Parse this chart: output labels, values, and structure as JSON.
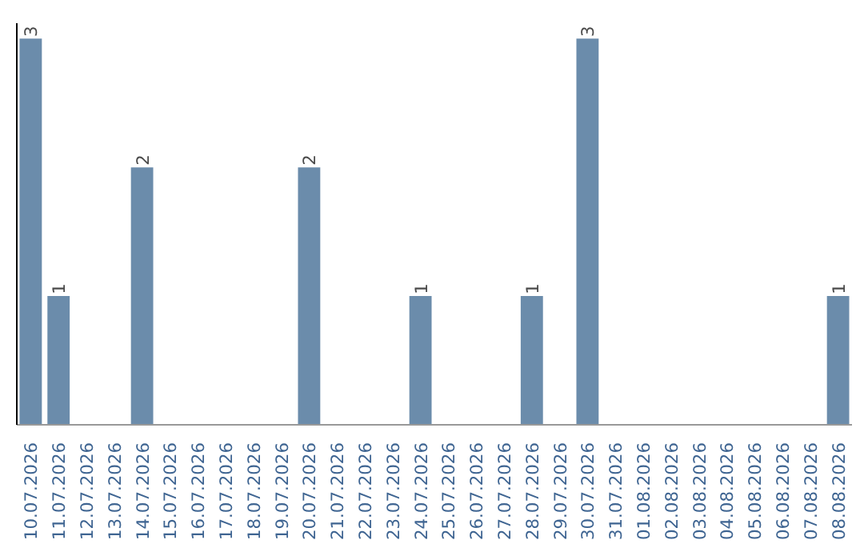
{
  "chart_data": {
    "type": "bar",
    "categories": [
      "10.07.2026",
      "11.07.2026",
      "12.07.2026",
      "13.07.2026",
      "14.07.2026",
      "15.07.2026",
      "16.07.2026",
      "17.07.2026",
      "18.07.2026",
      "19.07.2026",
      "20.07.2026",
      "21.07.2026",
      "22.07.2026",
      "23.07.2026",
      "24.07.2026",
      "25.07.2026",
      "26.07.2026",
      "27.07.2026",
      "28.07.2026",
      "29.07.2026",
      "30.07.2026",
      "31.07.2026",
      "01.08.2026",
      "02.08.2026",
      "03.08.2026",
      "04.08.2026",
      "05.08.2026",
      "06.08.2026",
      "07.08.2026",
      "08.08.2026"
    ],
    "values": [
      3,
      1,
      0,
      0,
      2,
      0,
      0,
      0,
      0,
      0,
      2,
      0,
      0,
      0,
      1,
      0,
      0,
      0,
      1,
      0,
      3,
      0,
      0,
      0,
      0,
      0,
      0,
      0,
      0,
      1
    ],
    "value_labels": [
      "3",
      "1",
      null,
      null,
      "2",
      null,
      null,
      null,
      null,
      null,
      "2",
      null,
      null,
      null,
      "1",
      null,
      null,
      null,
      "1",
      null,
      "3",
      null,
      null,
      null,
      null,
      null,
      null,
      null,
      null,
      "1"
    ],
    "color": "#6b8cab",
    "tick_labels": "x",
    "grid": false
  }
}
